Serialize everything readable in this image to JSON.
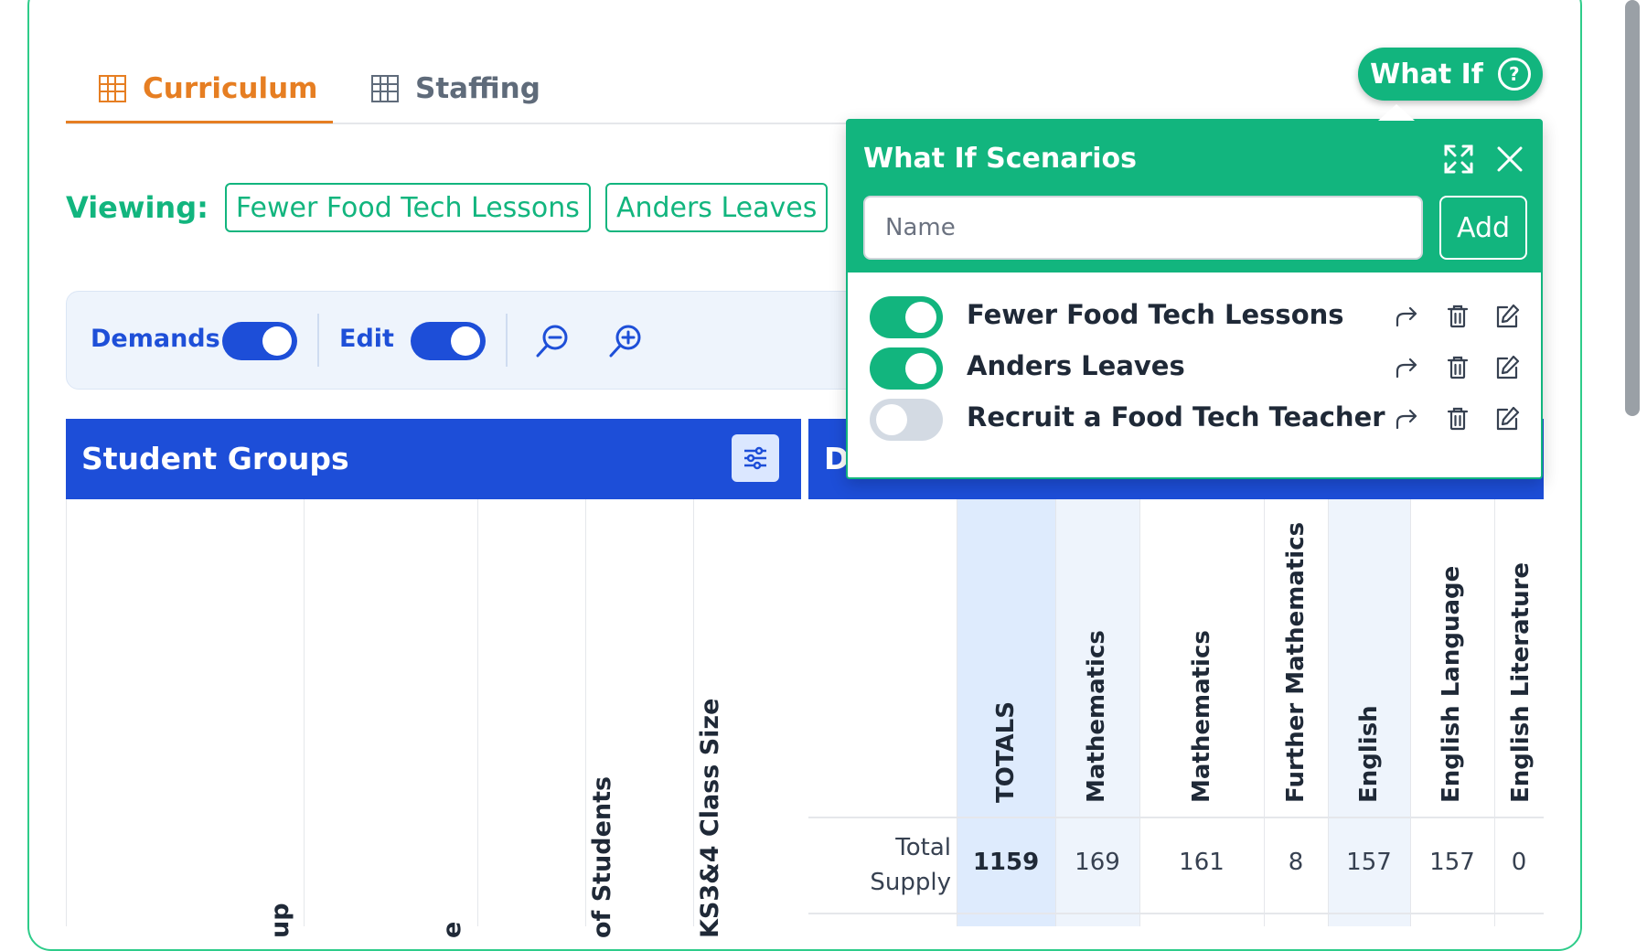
{
  "tabs": [
    {
      "label": "Curriculum",
      "active": true
    },
    {
      "label": "Staffing",
      "active": false
    }
  ],
  "what_if_button": {
    "label": "What If"
  },
  "viewing": {
    "label": "Viewing:",
    "chips": [
      "Fewer Food Tech Lessons",
      "Anders Leaves"
    ]
  },
  "toolbar": {
    "demands_label": "Demands",
    "demands_on": true,
    "edit_label": "Edit",
    "edit_on": true
  },
  "student_groups": {
    "title": "Student Groups",
    "columns": [
      "up",
      "e",
      "of Students",
      "KS3&4 Class Size"
    ]
  },
  "demands_panel": {
    "title": "D",
    "columns": [
      "TOTALS",
      "Mathematics",
      "Mathematics",
      "Further Mathematics",
      "English",
      "English Language",
      "English Literature"
    ],
    "rows": [
      {
        "label": "Total Supply",
        "values": [
          "1159",
          "169",
          "161",
          "8",
          "157",
          "157",
          "0"
        ]
      }
    ]
  },
  "popup": {
    "title": "What If Scenarios",
    "name_placeholder": "Name",
    "add_label": "Add",
    "scenarios": [
      {
        "name": "Fewer Food Tech Lessons",
        "enabled": true
      },
      {
        "name": "Anders Leaves",
        "enabled": true
      },
      {
        "name": "Recruit a Food Tech Teacher",
        "enabled": false
      }
    ]
  },
  "colors": {
    "green": "#12b57e",
    "orange": "#e67e22",
    "blue": "#1d4ed8"
  }
}
